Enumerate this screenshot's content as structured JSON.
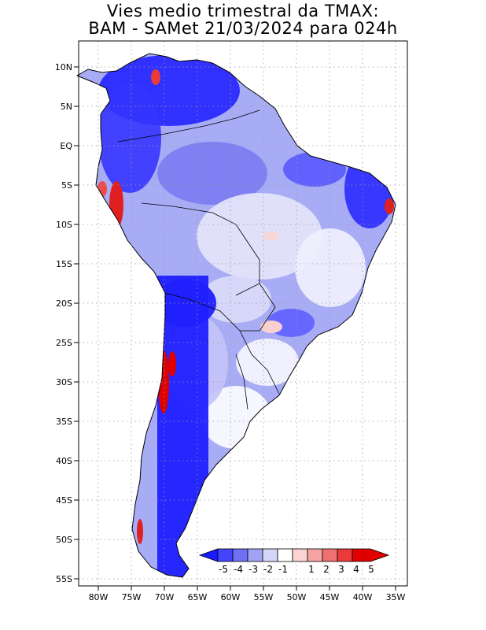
{
  "title": {
    "line1": "Vies medio trimestral da TMAX:",
    "line2": "BAM - SAMet 21/03/2024  para 024h"
  },
  "map": {
    "lon_range": [
      -82,
      -34
    ],
    "lat_range": [
      -56,
      13
    ],
    "x_ticks": [
      "80W",
      "75W",
      "70W",
      "65W",
      "60W",
      "55W",
      "50W",
      "45W",
      "40W",
      "35W"
    ],
    "y_ticks": [
      "10N",
      "5N",
      "EQ",
      "5S",
      "10S",
      "15S",
      "20S",
      "25S",
      "30S",
      "35S",
      "40S",
      "45S",
      "50S",
      "55S"
    ],
    "grid": "dotted"
  },
  "colorbar": {
    "labels": [
      "-5",
      "-4",
      "-3",
      "-2",
      "-1",
      "1",
      "2",
      "3",
      "4",
      "5"
    ],
    "colors": [
      "#1a1aff",
      "#4444ff",
      "#7070f2",
      "#a3a3f5",
      "#d5d5fa",
      "#ffffff",
      "#fbd4d4",
      "#f6a3a3",
      "#f07070",
      "#ea3a3a",
      "#e00000"
    ]
  }
}
